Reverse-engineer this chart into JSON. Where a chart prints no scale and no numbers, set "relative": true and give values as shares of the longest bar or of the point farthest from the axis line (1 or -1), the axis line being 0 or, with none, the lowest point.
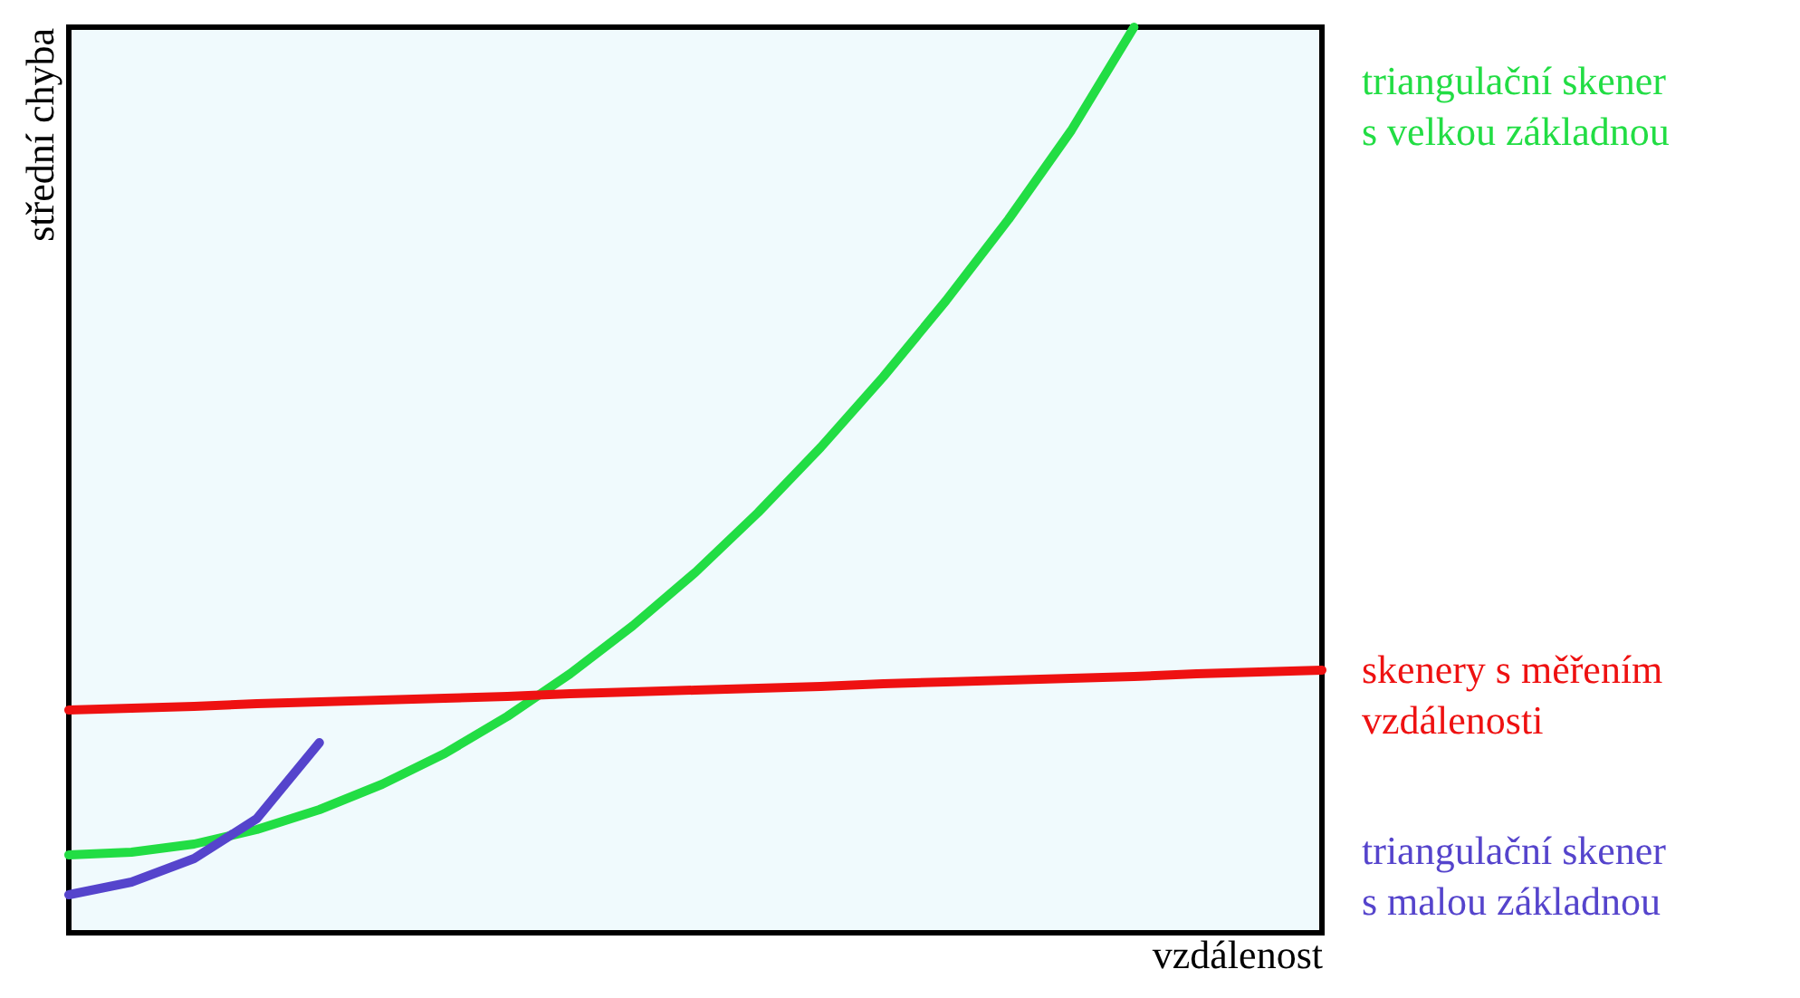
{
  "chart_data": {
    "type": "line",
    "relative": true,
    "xlabel": "vzdálenost",
    "ylabel": "střední chyba",
    "tick_labels": false,
    "categories": [
      null,
      null,
      null,
      null,
      null,
      null,
      null,
      null,
      null,
      null,
      null,
      null,
      null,
      null,
      null,
      null,
      null,
      null,
      null,
      null,
      null
    ],
    "series": [
      {
        "name": "triangulační skener s velkou základnou",
        "color": "#22dd44",
        "values": [
          0.086,
          0.089,
          0.098,
          0.114,
          0.136,
          0.164,
          0.198,
          0.239,
          0.286,
          0.339,
          0.398,
          0.464,
          0.536,
          0.614,
          0.698,
          0.788,
          0.886,
          1.0,
          null,
          null,
          null
        ]
      },
      {
        "name": "skenery s měřením vzdálenosti",
        "color": "#ee1111",
        "values": [
          0.246,
          0.248,
          0.25,
          0.253,
          0.255,
          0.257,
          0.259,
          0.261,
          0.264,
          0.266,
          0.268,
          0.27,
          0.272,
          0.275,
          0.277,
          0.279,
          0.281,
          0.283,
          0.286,
          0.288,
          0.29
        ]
      },
      {
        "name": "triangulační skener s malou základnou",
        "color": "#5544cc",
        "values": [
          0.042,
          0.056,
          0.082,
          0.126,
          0.21,
          null,
          null,
          null,
          null,
          null,
          null,
          null,
          null,
          null,
          null,
          null,
          null,
          null,
          null,
          null,
          null
        ]
      }
    ]
  }
}
